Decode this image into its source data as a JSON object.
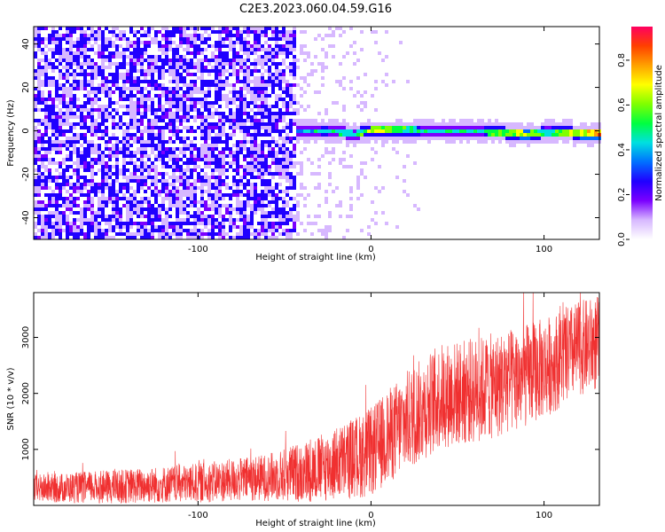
{
  "figure": {
    "title": "C2E3.2023.060.04.59.G16"
  },
  "chart_data": [
    {
      "type": "heatmap",
      "xlabel": "Height of straight line (km)",
      "ylabel": "Frequency (Hz)",
      "xlim": [
        -195,
        132
      ],
      "ylim": [
        -50,
        48
      ],
      "xticks": [
        -100,
        0,
        100
      ],
      "xtick_labels": [
        "-100",
        "0",
        "100"
      ],
      "yticks": [
        -40,
        -20,
        0,
        20,
        40
      ],
      "ytick_labels": [
        "-40",
        "-20",
        "0",
        "20",
        "40"
      ],
      "colorbar": {
        "label": "Normalized spectral amplitude",
        "range": [
          0,
          0.95
        ],
        "ticks": [
          0.0,
          0.2,
          0.4,
          0.6,
          0.8
        ],
        "tick_labels": [
          "0.0",
          "0.2",
          "0.4",
          "0.6",
          "0.8"
        ],
        "colormap": [
          "#ffffff",
          "#d7b8ff",
          "#7b00ff",
          "#2000ff",
          "#0070ff",
          "#00e0e0",
          "#00ff40",
          "#80ff00",
          "#ffff00",
          "#ffa000",
          "#ff4000",
          "#ff0060"
        ]
      },
      "ridge": {
        "description_values": "strong narrow-band signal near 0 Hz",
        "x": [
          -45,
          -30,
          -10,
          0,
          20,
          60,
          90,
          100,
          132
        ],
        "freq": [
          -0.5,
          0.2,
          -1.5,
          0.5,
          0.3,
          -0.3,
          -1.5,
          -0.8,
          -1.2
        ],
        "amplitude": [
          0.35,
          0.55,
          0.5,
          0.75,
          0.55,
          0.5,
          0.8,
          0.5,
          0.9
        ]
      },
      "noise_region": {
        "x_from": -195,
        "x_to": -45,
        "amplitude": 0.2
      }
    },
    {
      "type": "line",
      "color": "#f03030",
      "xlabel": "Height of straight line (km)",
      "ylabel": "SNR (10 * v/v)",
      "xlim": [
        -195,
        132
      ],
      "ylim": [
        0,
        3800
      ],
      "xticks": [
        -100,
        0,
        100
      ],
      "xtick_labels": [
        "-100",
        "0",
        "100"
      ],
      "yticks": [
        1000,
        2000,
        3000
      ],
      "ytick_labels": [
        "1000",
        "2000",
        "3000"
      ],
      "series": [
        {
          "x": [
            -195,
            -150,
            -100,
            -60,
            -30,
            0,
            20,
            40,
            60,
            80,
            100,
            120,
            132
          ],
          "mean": [
            300,
            330,
            400,
            500,
            650,
            950,
            1500,
            1950,
            2050,
            2200,
            2450,
            2800,
            2900
          ],
          "spread": [
            250,
            300,
            350,
            420,
            600,
            800,
            900,
            950,
            950,
            950,
            900,
            850,
            850
          ]
        }
      ]
    }
  ]
}
